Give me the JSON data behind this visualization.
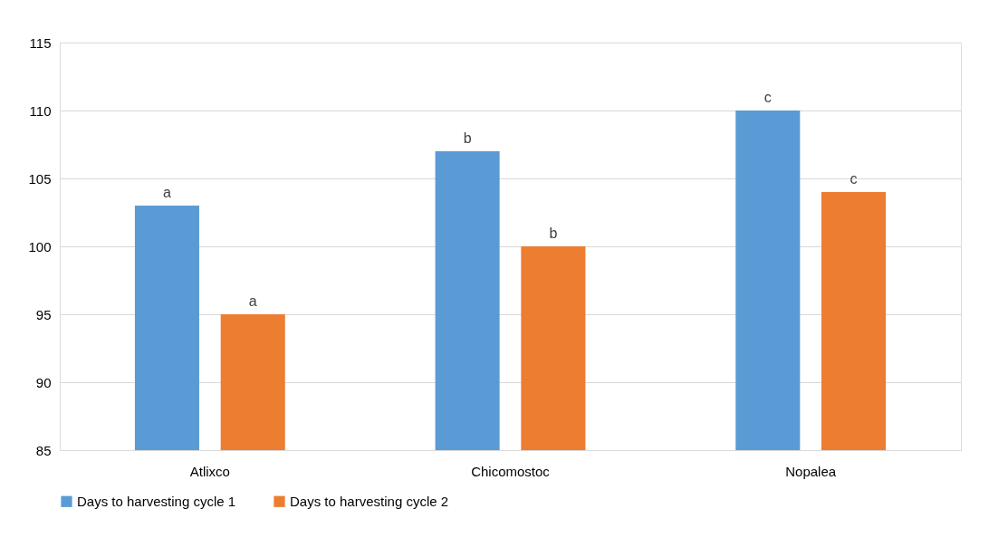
{
  "chart_data": {
    "type": "bar",
    "categories": [
      "Atlixco",
      "Chicomostoc",
      "Nopalea"
    ],
    "series": [
      {
        "name": "Days to harvesting cycle 1",
        "color": "#5b9bd5",
        "values": [
          103,
          107,
          110
        ],
        "value_labels": [
          "a",
          "b",
          "c"
        ]
      },
      {
        "name": "Days to harvesting cycle 2",
        "color": "#ed7d31",
        "values": [
          95,
          100,
          104
        ],
        "value_labels": [
          "a",
          "b",
          "c"
        ]
      }
    ],
    "ylim": [
      85,
      115
    ],
    "yticks": [
      85,
      90,
      95,
      100,
      105,
      110,
      115
    ],
    "grid": "y",
    "legend": "bottom"
  }
}
